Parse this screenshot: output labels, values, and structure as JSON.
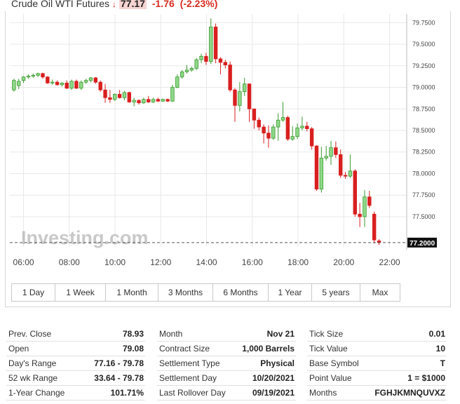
{
  "header": {
    "title": "Crude Oil WTI Futures",
    "arrow": "↓",
    "price": "77.17",
    "change": "-1.76",
    "change_pct": "(-2.23%)"
  },
  "colors": {
    "up": "#3c9a2f",
    "up_fill": "#8fd88a",
    "down": "#d91f1f",
    "grid": "#e8e8e8",
    "axis_text": "#444"
  },
  "chart_data": {
    "type": "candlestick",
    "watermark": "Investing.com",
    "current_price_label": "77.2000",
    "current_price": 77.2,
    "ylim": [
      77.15,
      79.85
    ],
    "y_ticks": [
      77.5,
      77.75,
      78.0,
      78.25,
      78.5,
      78.75,
      79.0,
      79.25,
      79.5,
      79.75
    ],
    "y_tick_labels": [
      "77.5000",
      "77.7500",
      "78.0000",
      "78.2500",
      "78.5000",
      "78.7500",
      "79.0000",
      "79.2500",
      "79.5000",
      "79.7500"
    ],
    "x_ticks": [
      6,
      8,
      10,
      12,
      14,
      16,
      18,
      20,
      22
    ],
    "x_tick_labels": [
      "06:00",
      "08:00",
      "10:00",
      "12:00",
      "14:00",
      "16:00",
      "18:00",
      "20:00",
      "22:00"
    ],
    "x_range": [
      5.4,
      22.75
    ],
    "candles": [
      {
        "t": 5.58,
        "o": 78.97,
        "h": 79.1,
        "l": 78.95,
        "c": 79.08
      },
      {
        "t": 5.79,
        "o": 79.02,
        "h": 79.1,
        "l": 78.98,
        "c": 79.07
      },
      {
        "t": 6.0,
        "o": 79.08,
        "h": 79.13,
        "l": 79.05,
        "c": 79.12
      },
      {
        "t": 6.21,
        "o": 79.12,
        "h": 79.15,
        "l": 79.1,
        "c": 79.13
      },
      {
        "t": 6.42,
        "o": 79.13,
        "h": 79.16,
        "l": 79.11,
        "c": 79.14
      },
      {
        "t": 6.63,
        "o": 79.14,
        "h": 79.17,
        "l": 79.12,
        "c": 79.16
      },
      {
        "t": 6.84,
        "o": 79.16,
        "h": 79.17,
        "l": 79.1,
        "c": 79.12
      },
      {
        "t": 7.05,
        "o": 79.12,
        "h": 79.13,
        "l": 79.04,
        "c": 79.05
      },
      {
        "t": 7.26,
        "o": 79.05,
        "h": 79.09,
        "l": 79.03,
        "c": 79.06
      },
      {
        "t": 7.47,
        "o": 79.06,
        "h": 79.08,
        "l": 79.02,
        "c": 79.03
      },
      {
        "t": 7.68,
        "o": 79.03,
        "h": 79.06,
        "l": 79.01,
        "c": 79.05
      },
      {
        "t": 7.89,
        "o": 79.05,
        "h": 79.08,
        "l": 78.98,
        "c": 78.99
      },
      {
        "t": 8.1,
        "o": 78.99,
        "h": 79.09,
        "l": 78.97,
        "c": 79.07
      },
      {
        "t": 8.31,
        "o": 79.07,
        "h": 79.09,
        "l": 78.98,
        "c": 78.99
      },
      {
        "t": 8.52,
        "o": 78.99,
        "h": 79.08,
        "l": 78.97,
        "c": 79.06
      },
      {
        "t": 8.73,
        "o": 79.06,
        "h": 79.1,
        "l": 79.04,
        "c": 79.08
      },
      {
        "t": 8.94,
        "o": 79.08,
        "h": 79.12,
        "l": 79.06,
        "c": 79.11
      },
      {
        "t": 9.15,
        "o": 79.11,
        "h": 79.12,
        "l": 79.04,
        "c": 79.06
      },
      {
        "t": 9.36,
        "o": 79.06,
        "h": 79.08,
        "l": 78.95,
        "c": 78.97
      },
      {
        "t": 9.57,
        "o": 78.97,
        "h": 79.04,
        "l": 78.82,
        "c": 78.88
      },
      {
        "t": 9.78,
        "o": 78.88,
        "h": 78.97,
        "l": 78.82,
        "c": 78.86
      },
      {
        "t": 9.99,
        "o": 78.86,
        "h": 78.93,
        "l": 78.84,
        "c": 78.92
      },
      {
        "t": 10.2,
        "o": 78.92,
        "h": 78.97,
        "l": 78.87,
        "c": 78.88
      },
      {
        "t": 10.41,
        "o": 78.88,
        "h": 78.96,
        "l": 78.85,
        "c": 78.94
      },
      {
        "t": 10.62,
        "o": 78.94,
        "h": 78.95,
        "l": 78.82,
        "c": 78.83
      },
      {
        "t": 10.83,
        "o": 78.83,
        "h": 78.88,
        "l": 78.78,
        "c": 78.85
      },
      {
        "t": 11.04,
        "o": 78.85,
        "h": 78.86,
        "l": 78.8,
        "c": 78.82
      },
      {
        "t": 11.25,
        "o": 78.82,
        "h": 78.88,
        "l": 78.81,
        "c": 78.86
      },
      {
        "t": 11.46,
        "o": 78.86,
        "h": 78.9,
        "l": 78.82,
        "c": 78.83
      },
      {
        "t": 11.67,
        "o": 78.83,
        "h": 78.88,
        "l": 78.82,
        "c": 78.86
      },
      {
        "t": 11.88,
        "o": 78.86,
        "h": 78.88,
        "l": 78.83,
        "c": 78.84
      },
      {
        "t": 12.09,
        "o": 78.84,
        "h": 78.87,
        "l": 78.83,
        "c": 78.86
      },
      {
        "t": 12.3,
        "o": 78.86,
        "h": 78.87,
        "l": 78.83,
        "c": 78.84
      },
      {
        "t": 12.51,
        "o": 78.84,
        "h": 79.03,
        "l": 78.83,
        "c": 79.0
      },
      {
        "t": 12.72,
        "o": 79.0,
        "h": 79.15,
        "l": 78.99,
        "c": 79.12
      },
      {
        "t": 12.93,
        "o": 79.12,
        "h": 79.2,
        "l": 79.1,
        "c": 79.18
      },
      {
        "t": 13.14,
        "o": 79.18,
        "h": 79.26,
        "l": 79.16,
        "c": 79.2
      },
      {
        "t": 13.35,
        "o": 79.2,
        "h": 79.24,
        "l": 79.18,
        "c": 79.22
      },
      {
        "t": 13.56,
        "o": 79.22,
        "h": 79.34,
        "l": 79.2,
        "c": 79.32
      },
      {
        "t": 13.77,
        "o": 79.32,
        "h": 79.39,
        "l": 79.28,
        "c": 79.36
      },
      {
        "t": 13.98,
        "o": 79.36,
        "h": 79.4,
        "l": 79.26,
        "c": 79.3
      },
      {
        "t": 14.19,
        "o": 79.3,
        "h": 79.8,
        "l": 79.27,
        "c": 79.7
      },
      {
        "t": 14.4,
        "o": 79.7,
        "h": 79.74,
        "l": 79.28,
        "c": 79.33
      },
      {
        "t": 14.61,
        "o": 79.33,
        "h": 79.35,
        "l": 79.15,
        "c": 79.29
      },
      {
        "t": 14.82,
        "o": 79.29,
        "h": 79.32,
        "l": 79.22,
        "c": 79.26
      },
      {
        "t": 15.03,
        "o": 79.26,
        "h": 79.3,
        "l": 78.95,
        "c": 78.97
      },
      {
        "t": 15.24,
        "o": 78.97,
        "h": 78.99,
        "l": 78.6,
        "c": 78.79
      },
      {
        "t": 15.45,
        "o": 78.79,
        "h": 79.06,
        "l": 78.72,
        "c": 78.95
      },
      {
        "t": 15.66,
        "o": 78.95,
        "h": 79.11,
        "l": 78.9,
        "c": 79.04
      },
      {
        "t": 15.87,
        "o": 79.04,
        "h": 79.04,
        "l": 78.6,
        "c": 78.75
      },
      {
        "t": 16.08,
        "o": 78.75,
        "h": 78.75,
        "l": 78.52,
        "c": 78.62
      },
      {
        "t": 16.29,
        "o": 78.62,
        "h": 78.65,
        "l": 78.5,
        "c": 78.54
      },
      {
        "t": 16.5,
        "o": 78.54,
        "h": 78.57,
        "l": 78.35,
        "c": 78.47
      },
      {
        "t": 16.71,
        "o": 78.47,
        "h": 78.56,
        "l": 78.3,
        "c": 78.41
      },
      {
        "t": 16.92,
        "o": 78.41,
        "h": 78.57,
        "l": 78.39,
        "c": 78.54
      },
      {
        "t": 17.13,
        "o": 78.54,
        "h": 78.7,
        "l": 78.38,
        "c": 78.62
      },
      {
        "t": 17.34,
        "o": 78.62,
        "h": 78.83,
        "l": 78.6,
        "c": 78.65
      },
      {
        "t": 17.55,
        "o": 78.65,
        "h": 78.67,
        "l": 78.38,
        "c": 78.4
      },
      {
        "t": 17.76,
        "o": 78.4,
        "h": 78.55,
        "l": 78.38,
        "c": 78.43
      },
      {
        "t": 17.97,
        "o": 78.43,
        "h": 78.58,
        "l": 78.4,
        "c": 78.53
      },
      {
        "t": 18.18,
        "o": 78.53,
        "h": 78.66,
        "l": 78.5,
        "c": 78.55
      },
      {
        "t": 18.39,
        "o": 78.55,
        "h": 78.6,
        "l": 78.49,
        "c": 78.52
      },
      {
        "t": 18.6,
        "o": 78.52,
        "h": 78.54,
        "l": 78.28,
        "c": 78.32
      },
      {
        "t": 18.81,
        "o": 78.32,
        "h": 78.33,
        "l": 77.8,
        "c": 77.82
      },
      {
        "t": 19.02,
        "o": 77.82,
        "h": 78.31,
        "l": 77.78,
        "c": 78.18
      },
      {
        "t": 19.23,
        "o": 78.18,
        "h": 78.32,
        "l": 78.15,
        "c": 78.2
      },
      {
        "t": 19.44,
        "o": 78.2,
        "h": 78.38,
        "l": 78.1,
        "c": 78.3
      },
      {
        "t": 19.65,
        "o": 78.3,
        "h": 78.37,
        "l": 78.18,
        "c": 78.22
      },
      {
        "t": 19.86,
        "o": 78.22,
        "h": 78.28,
        "l": 77.95,
        "c": 77.98
      },
      {
        "t": 20.07,
        "o": 77.98,
        "h": 78.02,
        "l": 77.94,
        "c": 77.97
      },
      {
        "t": 20.28,
        "o": 77.97,
        "h": 78.22,
        "l": 77.95,
        "c": 78.03
      },
      {
        "t": 20.49,
        "o": 78.03,
        "h": 78.05,
        "l": 77.5,
        "c": 77.53
      },
      {
        "t": 20.7,
        "o": 77.53,
        "h": 77.66,
        "l": 77.38,
        "c": 77.5
      },
      {
        "t": 20.91,
        "o": 77.5,
        "h": 77.81,
        "l": 77.38,
        "c": 77.73
      },
      {
        "t": 21.12,
        "o": 77.73,
        "h": 77.8,
        "l": 77.6,
        "c": 77.63
      },
      {
        "t": 21.33,
        "o": 77.53,
        "h": 77.56,
        "l": 77.19,
        "c": 77.23
      },
      {
        "t": 21.54,
        "o": 77.22,
        "h": 77.24,
        "l": 77.17,
        "c": 77.2
      }
    ]
  },
  "range_buttons": [
    "1 Day",
    "1 Week",
    "1 Month",
    "3 Months",
    "6 Months",
    "1 Year",
    "5 years",
    "Max"
  ],
  "stats": {
    "col1": [
      {
        "label": "Prev. Close",
        "value": "78.93"
      },
      {
        "label": "Open",
        "value": "79.08"
      },
      {
        "label": "Day's Range",
        "value": "77.16 - 79.78"
      },
      {
        "label": "52 wk Range",
        "value": "33.64 - 79.78"
      },
      {
        "label": "1-Year Change",
        "value": "101.71%"
      }
    ],
    "col2": [
      {
        "label": "Month",
        "value": "Nov 21"
      },
      {
        "label": "Contract Size",
        "value": "1,000 Barrels"
      },
      {
        "label": "Settlement Type",
        "value": "Physical"
      },
      {
        "label": "Settlement Day",
        "value": "10/20/2021"
      },
      {
        "label": "Last Rollover Day",
        "value": "09/19/2021"
      }
    ],
    "col3": [
      {
        "label": "Tick Size",
        "value": "0.01"
      },
      {
        "label": "Tick Value",
        "value": "10"
      },
      {
        "label": "Base Symbol",
        "value": "T"
      },
      {
        "label": "Point Value",
        "value": "1 = $1000"
      },
      {
        "label": "Months",
        "value": "FGHJKMNQUVXZ"
      }
    ]
  }
}
